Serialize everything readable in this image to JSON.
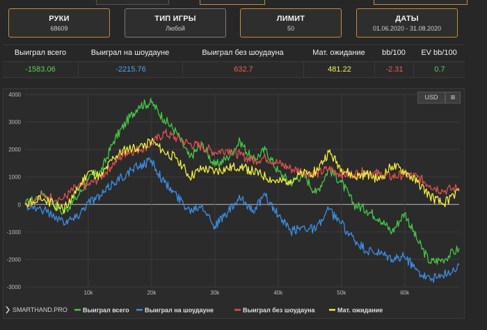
{
  "cards": [
    {
      "title": "РУКИ",
      "value": "68609"
    },
    {
      "title": "ТИП ИГРЫ",
      "value": "Любой"
    },
    {
      "title": "ЛИМИТ",
      "value": "50"
    },
    {
      "title": "ДАТЫ",
      "value": "01.06.2020 - 31.08.2020"
    }
  ],
  "stats": {
    "headers": [
      "Выиграл всего",
      "Выиграл на шоудауне",
      "Выиграл без шоудауна",
      "Мат. ожидание",
      "bb/100",
      "EV bb/100"
    ],
    "values": [
      "-1583.06",
      "-2215.76",
      "632.7",
      "481.22",
      "-2.31",
      "0.7"
    ],
    "colors": [
      "#5ad25a",
      "#4aa3f0",
      "#f05a5a",
      "#f0f060",
      "#f05a5a",
      "#5ad25a"
    ]
  },
  "chart_controls": {
    "currency_button": "USD",
    "menu_icon": "hamburger-icon"
  },
  "brand": "SMARTHAND.PRO",
  "chart_data": {
    "type": "line",
    "title": "",
    "xlabel": "",
    "ylabel": "",
    "xlim": [
      0,
      68609
    ],
    "ylim": [
      -3000,
      4000
    ],
    "yticks": [
      "4000",
      "3000",
      "2000",
      "1000",
      "0",
      "-1000",
      "-2000",
      "-3000"
    ],
    "xticks": [
      "10k",
      "20k",
      "30k",
      "40k",
      "50k",
      "60k"
    ],
    "legend_position": "bottom",
    "x": [
      0,
      3000,
      6000,
      8000,
      10000,
      12000,
      14000,
      16000,
      18000,
      20000,
      22000,
      24000,
      26000,
      28000,
      30000,
      32000,
      34000,
      36000,
      38000,
      40000,
      42000,
      44000,
      46000,
      48000,
      50000,
      52000,
      54000,
      56000,
      58000,
      60000,
      62000,
      64000,
      66000,
      68609
    ],
    "series": [
      {
        "name": "Выиграл всего",
        "color": "#46c846",
        "values": [
          0,
          400,
          -300,
          200,
          900,
          1200,
          2300,
          3000,
          3600,
          3700,
          3100,
          2600,
          1700,
          2200,
          1400,
          1700,
          2300,
          1600,
          2000,
          1200,
          800,
          1100,
          400,
          1300,
          800,
          0,
          -200,
          -500,
          -1000,
          -300,
          -1300,
          -2100,
          -2000,
          -1600
        ]
      },
      {
        "name": "Выиграл на шоудауне",
        "color": "#3c8ee6",
        "values": [
          0,
          -200,
          -600,
          -500,
          100,
          300,
          800,
          1100,
          1400,
          1600,
          800,
          300,
          -200,
          0,
          -800,
          -300,
          200,
          -200,
          300,
          -400,
          -1000,
          -800,
          -900,
          -200,
          -700,
          -1300,
          -1700,
          -1800,
          -2000,
          -1900,
          -2400,
          -2700,
          -2600,
          -2200
        ]
      },
      {
        "name": "Выиграл без шоудауна",
        "color": "#e05050",
        "values": [
          0,
          300,
          200,
          600,
          700,
          1000,
          1500,
          1900,
          2000,
          2200,
          2600,
          2400,
          2200,
          2100,
          1900,
          2000,
          1800,
          1600,
          1700,
          1500,
          1300,
          1200,
          1100,
          1300,
          1100,
          1100,
          1200,
          1100,
          1000,
          1100,
          1000,
          700,
          500,
          600
        ]
      },
      {
        "name": "Мат. ожидание",
        "color": "#f0f03c",
        "values": [
          0,
          200,
          -200,
          400,
          1200,
          1000,
          1700,
          2000,
          2100,
          2300,
          1900,
          1700,
          1000,
          1300,
          1200,
          1300,
          1400,
          1200,
          1000,
          800,
          900,
          1100,
          1200,
          1900,
          1300,
          1000,
          1100,
          900,
          1400,
          1200,
          800,
          300,
          0,
          500
        ]
      }
    ]
  }
}
